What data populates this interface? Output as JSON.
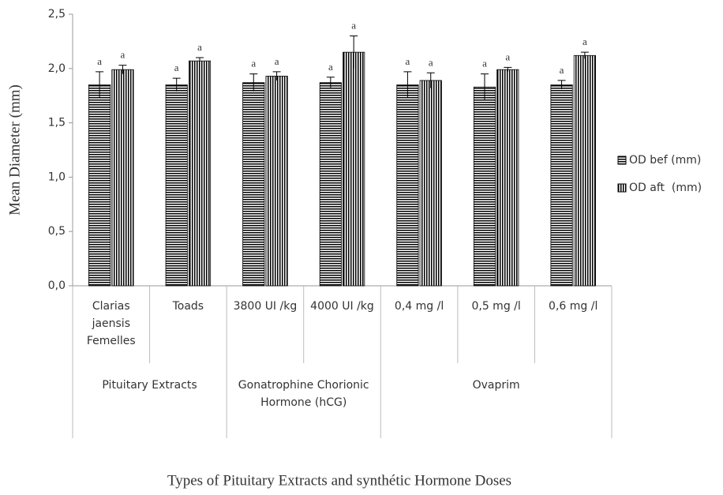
{
  "chart_data": {
    "type": "bar",
    "y_label": "Mean Diameter (mm)",
    "x_label": "Types of Pituitary Extracts and synthétic Hormone Doses",
    "categories": [
      "Clarias jaensis Femelles",
      "Toads",
      "3800 UI /kg",
      "4000 UI /kg",
      "0,4 mg /l",
      "0,5 mg /l",
      "0,6 mg /l"
    ],
    "groups": [
      {
        "name": "Pituitary Extracts",
        "size": 2
      },
      {
        "name": "Gonatrophine Chorionic Hormone (hCG)",
        "size": 2
      },
      {
        "name": "Ovaprim",
        "size": 3
      }
    ],
    "series": [
      {
        "name": "OD bef (mm)",
        "color": "#000000",
        "pattern": "horizontal",
        "values": [
          1.85,
          1.85,
          1.87,
          1.87,
          1.85,
          1.83,
          1.85
        ],
        "errors": [
          0.12,
          0.06,
          0.08,
          0.05,
          0.12,
          0.12,
          0.04
        ],
        "significance": [
          "a",
          "a",
          "a",
          "a",
          "a",
          "a",
          "a"
        ]
      },
      {
        "name": "OD aft  (mm)",
        "color": "#000000",
        "pattern": "vertical",
        "values": [
          1.99,
          2.07,
          1.93,
          2.15,
          1.89,
          1.99,
          2.12
        ],
        "errors": [
          0.04,
          0.03,
          0.04,
          0.15,
          0.07,
          0.02,
          0.03
        ],
        "significance": [
          "a",
          "a",
          "a",
          "a",
          "a",
          "a",
          "a"
        ]
      }
    ],
    "ylim": [
      0,
      2.5
    ],
    "yticks": [
      {
        "value": 0,
        "label": "0,0"
      },
      {
        "value": 0.5,
        "label": "0,5"
      },
      {
        "value": 1,
        "label": "1,0"
      },
      {
        "value": 1.5,
        "label": "1,5"
      },
      {
        "value": 2,
        "label": "2,0"
      },
      {
        "value": 2.5,
        "label": "2,5"
      }
    ],
    "grid": false,
    "legend": "right"
  }
}
